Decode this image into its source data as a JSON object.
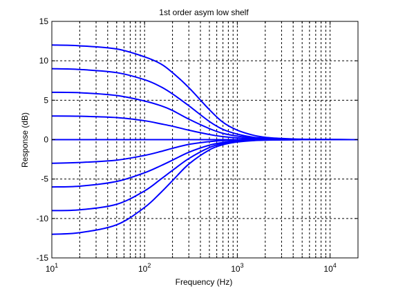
{
  "chart_data": {
    "type": "line",
    "title": "1st order asym low shelf",
    "xlabel": "Frequency (Hz)",
    "ylabel": "Response (dB)",
    "xscale": "log",
    "xlim": [
      10,
      20000
    ],
    "ylim": [
      -15,
      15
    ],
    "grid": true,
    "grid_style": "dashed",
    "line_color": "#0000ff",
    "x_ticks": [
      {
        "value": 10,
        "base": "10",
        "exp": "1"
      },
      {
        "value": 100,
        "base": "10",
        "exp": "2"
      },
      {
        "value": 1000,
        "base": "10",
        "exp": "3"
      },
      {
        "value": 10000,
        "base": "10",
        "exp": "4"
      }
    ],
    "y_ticks": [
      {
        "value": 15,
        "label": "15"
      },
      {
        "value": 10,
        "label": "10"
      },
      {
        "value": 5,
        "label": "5"
      },
      {
        "value": 0,
        "label": "0"
      },
      {
        "value": -5,
        "label": "-5"
      },
      {
        "value": -10,
        "label": "-10"
      },
      {
        "value": -15,
        "label": "-15"
      }
    ],
    "x": [
      10,
      20,
      50,
      100,
      150,
      200,
      300,
      500,
      700,
      1000,
      1500,
      2000,
      3000,
      5000,
      10000,
      20000
    ],
    "series": [
      {
        "values": [
          12.0,
          11.9,
          11.5,
          10.5,
          9.6,
          8.5,
          6.6,
          3.8,
          2.2,
          1.2,
          0.55,
          0.3,
          0.15,
          0.05,
          0.02,
          0.0
        ]
      },
      {
        "values": [
          9.0,
          8.9,
          8.5,
          7.6,
          6.7,
          5.8,
          4.3,
          2.3,
          1.3,
          0.7,
          0.3,
          0.18,
          0.08,
          0.03,
          0.01,
          0.0
        ]
      },
      {
        "values": [
          6.0,
          5.95,
          5.6,
          4.9,
          4.3,
          3.7,
          2.6,
          1.4,
          0.8,
          0.45,
          0.2,
          0.12,
          0.06,
          0.02,
          0.01,
          0.0
        ]
      },
      {
        "values": [
          3.0,
          2.97,
          2.8,
          2.4,
          2.0,
          1.7,
          1.2,
          0.65,
          0.38,
          0.22,
          0.1,
          0.06,
          0.03,
          0.01,
          0.0,
          0.0
        ]
      },
      {
        "values": [
          0,
          0,
          0,
          0,
          0,
          0,
          0,
          0,
          0,
          0,
          0,
          0,
          0,
          0,
          0,
          0
        ]
      },
      {
        "values": [
          -3.0,
          -2.9,
          -2.6,
          -2.0,
          -1.5,
          -1.1,
          -0.6,
          -0.25,
          -0.12,
          -0.06,
          -0.02,
          -0.01,
          0.0,
          0.0,
          0.0,
          0.0
        ]
      },
      {
        "values": [
          -6.0,
          -5.9,
          -5.3,
          -4.2,
          -3.3,
          -2.6,
          -1.6,
          -0.7,
          -0.35,
          -0.17,
          -0.07,
          -0.04,
          -0.02,
          0.0,
          0.0,
          0.0
        ]
      },
      {
        "values": [
          -9.0,
          -8.9,
          -8.2,
          -6.5,
          -5.0,
          -3.9,
          -2.4,
          -1.0,
          -0.5,
          -0.25,
          -0.1,
          -0.05,
          -0.02,
          0.0,
          0.0,
          0.0
        ]
      },
      {
        "values": [
          -12.0,
          -11.8,
          -10.8,
          -8.6,
          -6.7,
          -5.2,
          -3.1,
          -1.3,
          -0.65,
          -0.3,
          -0.12,
          -0.06,
          -0.03,
          0.0,
          0.0,
          0.0
        ]
      }
    ]
  }
}
